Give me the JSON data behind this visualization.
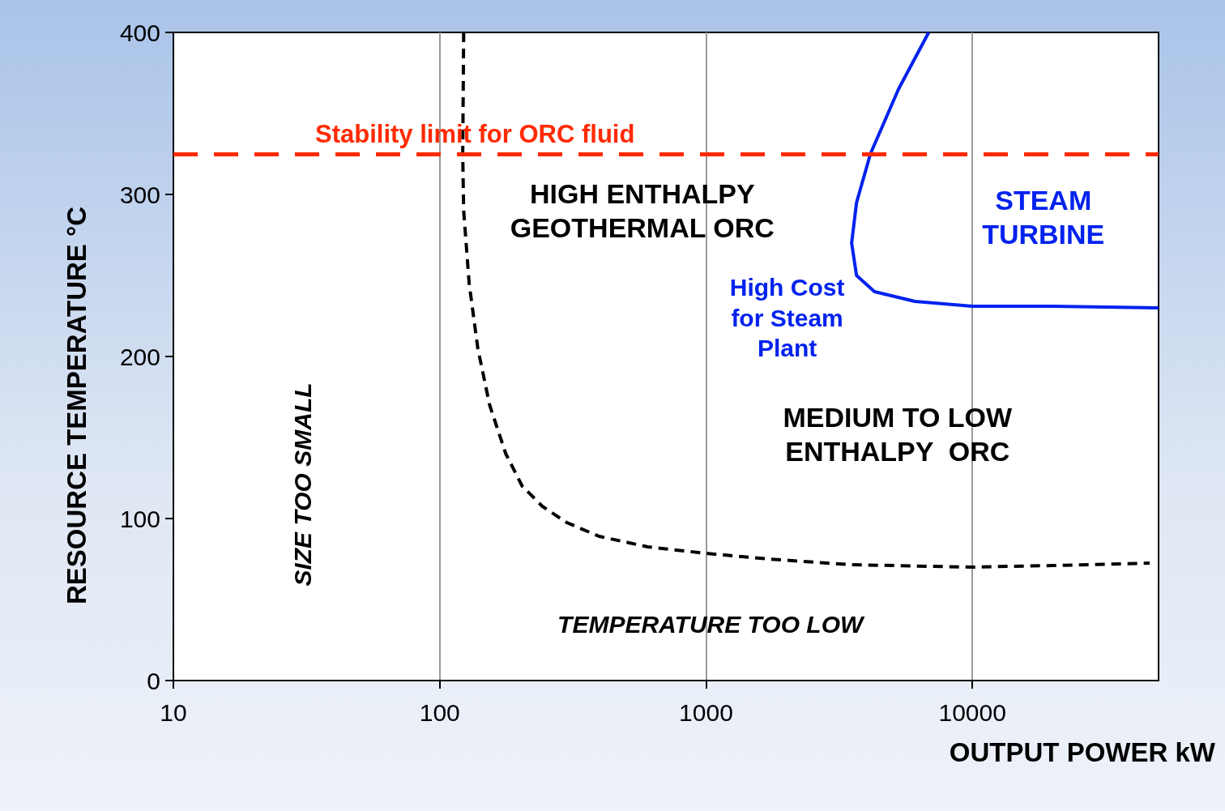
{
  "chart_data": {
    "type": "line",
    "xlabel": "OUTPUT POWER kW",
    "ylabel": "RESOURCE TEMPERATURE °C",
    "log": "x",
    "xlim": [
      10,
      50000
    ],
    "xticks": [
      10,
      100,
      1000,
      10000
    ],
    "ylim": [
      0,
      400
    ],
    "yticks": [
      0,
      100,
      200,
      300,
      400
    ],
    "grid": "x",
    "marker": "none",
    "series": [
      {
        "color": "#000000",
        "line_style": "dashed",
        "x": [
          123,
          122,
          123,
          129,
          139,
          154,
          177,
          204,
          243,
          300,
          397,
          604,
          1000,
          1726,
          3475,
          10000,
          20000,
          46300
        ],
        "values": [
          400,
          325,
          290,
          245,
          205,
          170,
          140,
          120,
          107.5,
          97.5,
          89,
          82.5,
          78.5,
          75,
          71.5,
          70,
          71,
          72.5
        ]
      },
      {
        "color": "#0022ee",
        "line_style": "solid",
        "x": [
          6855,
          5280,
          4140,
          3673,
          3520,
          3673,
          4290,
          6085,
          10000,
          20000,
          50000
        ],
        "values": [
          400,
          365,
          325,
          295,
          270,
          250,
          240,
          234,
          231,
          231,
          230
        ]
      }
    ],
    "ref_lines": [
      {
        "axis": "y",
        "value": 325,
        "label": "Stability limit for ORC fluid",
        "color": "#ff2a00",
        "line_style": "dashed"
      }
    ],
    "annotations": [
      "HIGH ENTHALPY\nGEOTHERMAL ORC",
      "STEAM\nTURBINE",
      "High Cost\nfor Steam\nPlant",
      "MEDIUM TO LOW\nENTHALPY  ORC",
      "SIZE TOO SMALL",
      "TEMPERATURE TOO LOW"
    ]
  }
}
